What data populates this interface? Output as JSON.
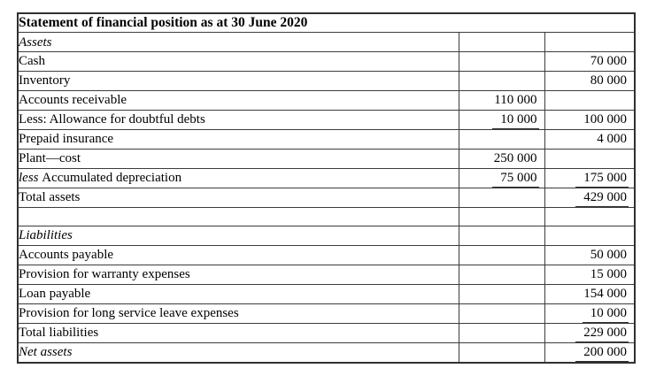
{
  "title": "Statement of financial position as at 30 June 2020",
  "colors": {
    "border": "#3c3c3c",
    "text": "#000000",
    "background": "#ffffff"
  },
  "columns": {
    "label_width": 498,
    "mid_width": 97,
    "right_width": 102
  },
  "rows": [
    {
      "label": "Assets",
      "italic": true,
      "prefix": "",
      "mid": "",
      "mid_underline": false,
      "right": "",
      "right_underline": false
    },
    {
      "label": "Cash",
      "italic": false,
      "prefix": "",
      "mid": "",
      "mid_underline": false,
      "right": "70 000",
      "right_underline": false
    },
    {
      "label": "Inventory",
      "italic": false,
      "prefix": "",
      "mid": "",
      "mid_underline": false,
      "right": "80 000",
      "right_underline": false
    },
    {
      "label": "Accounts receivable",
      "italic": false,
      "prefix": "",
      "mid": "110 000",
      "mid_underline": false,
      "right": "",
      "right_underline": false
    },
    {
      "label": "Less: Allowance for doubtful debts",
      "italic": false,
      "prefix": "",
      "mid": "10 000",
      "mid_underline": true,
      "right": "100 000",
      "right_underline": false
    },
    {
      "label": "Prepaid insurance",
      "italic": false,
      "prefix": "",
      "mid": "",
      "mid_underline": false,
      "right": "4 000",
      "right_underline": false
    },
    {
      "label": "Plant—cost",
      "italic": false,
      "prefix": "",
      "mid": "250 000",
      "mid_underline": false,
      "right": "",
      "right_underline": false
    },
    {
      "label": "Accumulated depreciation",
      "italic": false,
      "prefix": "less",
      "mid": "75 000",
      "mid_underline": true,
      "right": "175 000",
      "right_underline": true
    },
    {
      "label": "Total assets",
      "italic": false,
      "prefix": "",
      "mid": "",
      "mid_underline": false,
      "right": "429 000",
      "right_underline": true
    },
    {
      "label": "",
      "italic": false,
      "prefix": "",
      "mid": "",
      "mid_underline": false,
      "right": "",
      "right_underline": false
    },
    {
      "label": "Liabilities",
      "italic": true,
      "prefix": "",
      "mid": "",
      "mid_underline": false,
      "right": "",
      "right_underline": false
    },
    {
      "label": "Accounts payable",
      "italic": false,
      "prefix": "",
      "mid": "",
      "mid_underline": false,
      "right": "50 000",
      "right_underline": false
    },
    {
      "label": "Provision for warranty expenses",
      "italic": false,
      "prefix": "",
      "mid": "",
      "mid_underline": false,
      "right": "15 000",
      "right_underline": false
    },
    {
      "label": "Loan payable",
      "italic": false,
      "prefix": "",
      "mid": "",
      "mid_underline": false,
      "right": "154 000",
      "right_underline": false
    },
    {
      "label": "Provision for long service leave expenses",
      "italic": false,
      "prefix": "",
      "mid": "",
      "mid_underline": false,
      "right": "10 000",
      "right_underline": true
    },
    {
      "label": "Total liabilities",
      "italic": false,
      "prefix": "",
      "mid": "",
      "mid_underline": false,
      "right": "229 000",
      "right_underline": true
    },
    {
      "label": "Net assets",
      "italic": true,
      "prefix": "",
      "mid": "",
      "mid_underline": false,
      "right": "200 000",
      "right_underline": true
    }
  ]
}
